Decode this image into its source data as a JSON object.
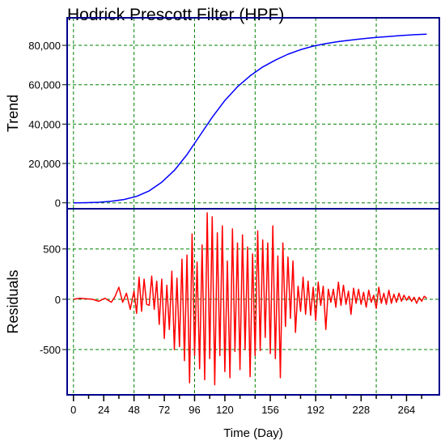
{
  "chart_data": {
    "type": "line",
    "title": "Hodrick Prescott Filter (HPF)",
    "xlabel": "Time (Day)",
    "xlim": [
      -5,
      290
    ],
    "x_ticks": [
      0,
      24,
      48,
      72,
      96,
      120,
      156,
      192,
      228,
      264
    ],
    "x_major_grid": [
      0,
      48,
      96,
      144,
      192,
      240
    ],
    "panels": [
      {
        "id": "trend",
        "ylabel": "Trend",
        "ylim": [
          -3000,
          94000
        ],
        "y_ticks": [
          0,
          20000,
          40000,
          60000,
          80000
        ],
        "y_tick_labels": [
          "0",
          "20,000",
          "40,000",
          "60,000",
          "80,000"
        ],
        "series": [
          {
            "color": "#0000ff",
            "x": [
              0,
              10,
              20,
              30,
              40,
              50,
              60,
              70,
              80,
              90,
              100,
              110,
              120,
              130,
              140,
              150,
              160,
              170,
              180,
              190,
              200,
              210,
              220,
              230,
              240,
              250,
              260,
              270,
              280
            ],
            "y": [
              0,
              100,
              300,
              800,
              1700,
              3300,
              6100,
              10500,
              16500,
              24500,
              34000,
              43500,
              52000,
              59000,
              64500,
              69000,
              72500,
              75500,
              77800,
              79600,
              80900,
              81900,
              82700,
              83400,
              84000,
              84500,
              85000,
              85400,
              85700
            ]
          }
        ]
      },
      {
        "id": "residuals",
        "ylabel": "Residuals",
        "ylim": [
          -950,
          900
        ],
        "y_ticks": [
          -500,
          0,
          500
        ],
        "y_tick_labels": [
          "-500",
          "0",
          "500"
        ],
        "series": [
          {
            "color": "#ff0000",
            "x": [
              0,
              5,
              10,
              15,
              20,
              25,
              30,
              33,
              36,
              39,
              42,
              45,
              48,
              50,
              52,
              54,
              56,
              58,
              60,
              62,
              64,
              66,
              68,
              70,
              72,
              74,
              76,
              78,
              80,
              82,
              84,
              86,
              88,
              90,
              92,
              94,
              96,
              98,
              100,
              102,
              104,
              106,
              108,
              110,
              112,
              114,
              116,
              118,
              120,
              122,
              124,
              126,
              128,
              130,
              132,
              134,
              136,
              138,
              140,
              142,
              144,
              146,
              148,
              150,
              152,
              154,
              156,
              158,
              160,
              162,
              164,
              166,
              168,
              170,
              172,
              174,
              176,
              178,
              180,
              182,
              184,
              186,
              188,
              190,
              192,
              194,
              196,
              198,
              200,
              202,
              204,
              206,
              208,
              210,
              212,
              214,
              216,
              218,
              220,
              222,
              224,
              226,
              228,
              230,
              232,
              234,
              236,
              238,
              240,
              242,
              244,
              246,
              248,
              250,
              252,
              254,
              256,
              258,
              260,
              262,
              264,
              266,
              268,
              270,
              272,
              274,
              276,
              278,
              280
            ],
            "y": [
              0,
              10,
              5,
              0,
              -20,
              10,
              -30,
              30,
              120,
              -30,
              60,
              -100,
              80,
              -140,
              220,
              -120,
              200,
              -50,
              -60,
              230,
              -100,
              180,
              -250,
              200,
              -390,
              140,
              -300,
              280,
              -500,
              210,
              -470,
              400,
              -610,
              440,
              -830,
              650,
              -560,
              370,
              -690,
              540,
              -800,
              860,
              -590,
              820,
              -850,
              660,
              -560,
              730,
              -720,
              380,
              -780,
              700,
              -520,
              560,
              -700,
              640,
              -500,
              520,
              -770,
              450,
              -560,
              680,
              -510,
              590,
              -380,
              560,
              -540,
              730,
              -590,
              430,
              -780,
              560,
              -270,
              420,
              -190,
              380,
              -330,
              130,
              -120,
              220,
              -150,
              180,
              -160,
              120,
              -210,
              170,
              -60,
              130,
              -300,
              100,
              -30,
              100,
              -80,
              170,
              -60,
              140,
              -50,
              80,
              -150,
              110,
              -40,
              100,
              -50,
              70,
              -80,
              90,
              -30,
              40,
              -90,
              120,
              -40,
              60,
              -50,
              90,
              -40,
              50,
              -30,
              60,
              -20,
              40,
              -10,
              30,
              -20,
              20,
              -40,
              20,
              -20,
              30,
              10
            ]
          }
        ]
      }
    ],
    "grid": true,
    "legend": "none"
  }
}
